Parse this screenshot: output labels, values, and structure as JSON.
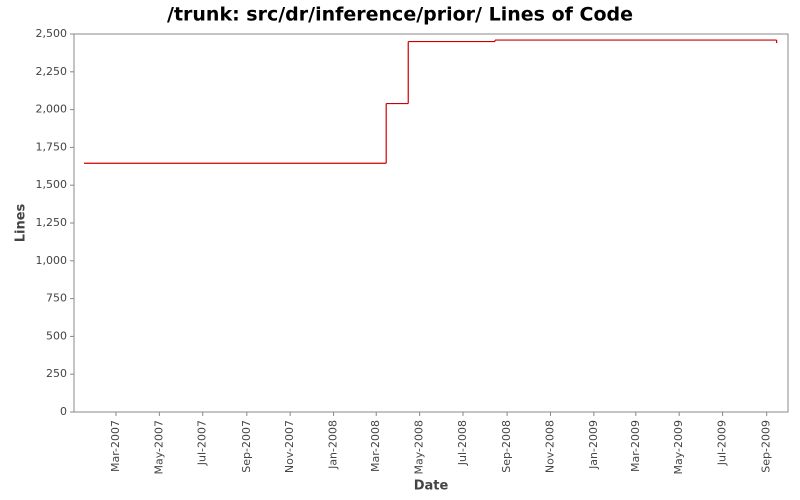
{
  "chart_data": {
    "type": "step-line",
    "title": "/trunk: src/dr/inference/prior/ Lines of Code",
    "x_label": "Date",
    "y_label": "Lines",
    "series": [
      {
        "name": "Lines",
        "color": "#cc0000",
        "x": [
          "2007-01",
          "2008-03",
          "2008-04",
          "2008-08",
          "2009-09",
          "2009-09"
        ],
        "values": [
          1645,
          2040,
          2450,
          2460,
          2460,
          2440
        ]
      }
    ],
    "xlim": [
      "2007-01",
      "2009-10"
    ],
    "xticks": [
      {
        "value": "2007-03",
        "label": "Mar-2007"
      },
      {
        "value": "2007-05",
        "label": "May-2007"
      },
      {
        "value": "2007-07",
        "label": "Jul-2007"
      },
      {
        "value": "2007-09",
        "label": "Sep-2007"
      },
      {
        "value": "2007-11",
        "label": "Nov-2007"
      },
      {
        "value": "2008-01",
        "label": "Jan-2008"
      },
      {
        "value": "2008-03",
        "label": "Mar-2008"
      },
      {
        "value": "2008-05",
        "label": "May-2008"
      },
      {
        "value": "2008-07",
        "label": "Jul-2008"
      },
      {
        "value": "2008-09",
        "label": "Sep-2008"
      },
      {
        "value": "2008-11",
        "label": "Nov-2008"
      },
      {
        "value": "2009-01",
        "label": "Jan-2009"
      },
      {
        "value": "2009-03",
        "label": "Mar-2009"
      },
      {
        "value": "2009-05",
        "label": "May-2009"
      },
      {
        "value": "2009-07",
        "label": "Jul-2009"
      },
      {
        "value": "2009-09",
        "label": "Sep-2009"
      }
    ],
    "ylim": [
      0,
      2500
    ],
    "yticks": [
      0,
      250,
      500,
      750,
      {
        "value": 1000,
        "label": "1,000"
      },
      {
        "value": 1250,
        "label": "1,250"
      },
      {
        "value": 1500,
        "label": "1,500"
      },
      {
        "value": 1750,
        "label": "1,750"
      },
      {
        "value": 2000,
        "label": "2,000"
      },
      {
        "value": 2250,
        "label": "2,250"
      },
      {
        "value": 2500,
        "label": "2,500"
      }
    ],
    "grid": false
  }
}
